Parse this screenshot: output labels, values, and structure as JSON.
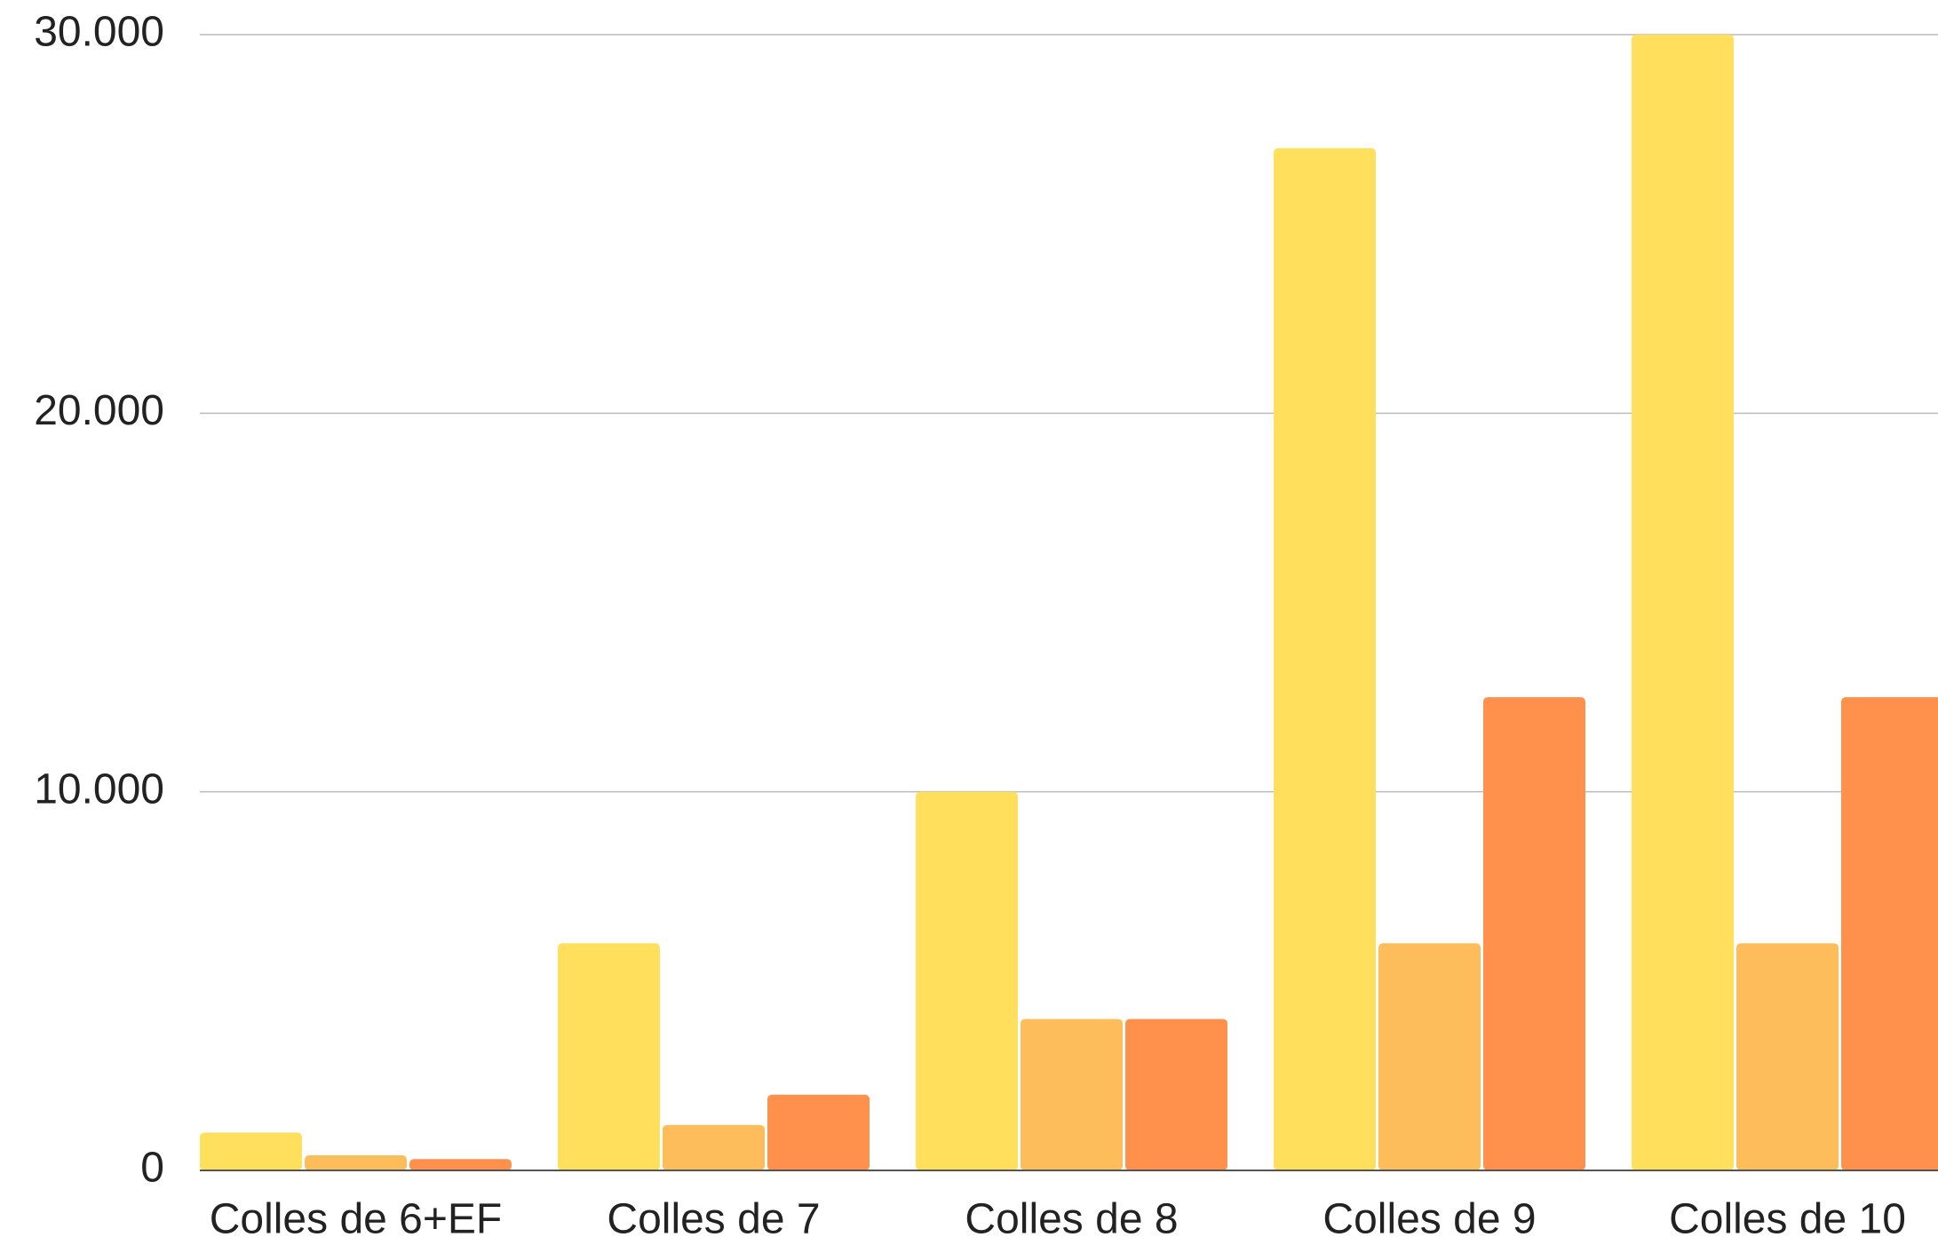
{
  "chart_data": {
    "type": "bar",
    "categories": [
      "Colles de 6+EF",
      "Colles de 7",
      "Colles de 8",
      "Colles de 9",
      "Colles de 10"
    ],
    "series": [
      {
        "color": "#ffdf5c",
        "values": [
          1000,
          6000,
          10000,
          27000,
          30000
        ]
      },
      {
        "color": "#fdbd5a",
        "values": [
          400,
          1200,
          4000,
          6000,
          6000
        ]
      },
      {
        "color": "#ff914d",
        "values": [
          300,
          2000,
          4000,
          12500,
          12500
        ]
      }
    ],
    "ylim": [
      0,
      30000
    ],
    "yticks": [
      0,
      {
        "value": 10000,
        "label": "10.000"
      },
      {
        "value": 20000,
        "label": "20.000"
      },
      {
        "value": 30000,
        "label": "30.000"
      }
    ],
    "grid": true
  }
}
